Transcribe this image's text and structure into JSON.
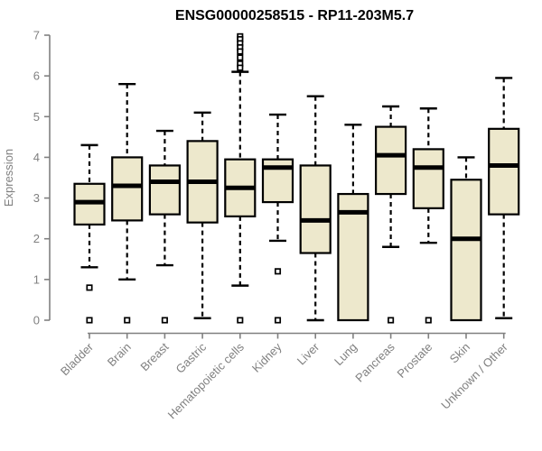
{
  "window": {
    "background": "#ffffff"
  },
  "chart_data": {
    "type": "boxplot",
    "title": "ENSG00000258515 - RP11-203M5.7",
    "xlabel": "",
    "ylabel": "Expression",
    "ylim": [
      0,
      7
    ],
    "yticks": [
      0,
      1,
      2,
      3,
      4,
      5,
      6,
      7
    ],
    "grid": false,
    "legend": "none",
    "outlier_symbol": "open-square",
    "categories": [
      "Bladder",
      "Brain",
      "Breast",
      "Gastric",
      "Hematopoietic cells",
      "Kidney",
      "Liver",
      "Lung",
      "Pancreas",
      "Prostate",
      "Skin",
      "Unknown / Other"
    ],
    "series": [
      {
        "name": "Bladder",
        "low": 1.3,
        "q1": 2.35,
        "median": 2.9,
        "q3": 3.35,
        "high": 4.3,
        "outliers": [
          0.8,
          0
        ]
      },
      {
        "name": "Brain",
        "low": 1.0,
        "q1": 2.45,
        "median": 3.3,
        "q3": 4.0,
        "high": 5.8,
        "outliers": [
          0
        ]
      },
      {
        "name": "Breast",
        "low": 1.35,
        "q1": 2.6,
        "median": 3.4,
        "q3": 3.8,
        "high": 4.65,
        "outliers": [
          0
        ]
      },
      {
        "name": "Gastric",
        "low": 0.05,
        "q1": 2.4,
        "median": 3.4,
        "q3": 4.4,
        "high": 5.1,
        "outliers": []
      },
      {
        "name": "Hematopoietic cells",
        "low": 0.85,
        "q1": 2.55,
        "median": 3.25,
        "q3": 3.95,
        "high": 6.1,
        "outliers": [
          6.97,
          6.9,
          6.8,
          6.7,
          6.6,
          6.45,
          6.3,
          6.2,
          0
        ]
      },
      {
        "name": "Kidney",
        "low": 1.95,
        "q1": 2.9,
        "median": 3.75,
        "q3": 3.95,
        "high": 5.05,
        "outliers": [
          1.2,
          0
        ]
      },
      {
        "name": "Liver",
        "low": 0.0,
        "q1": 1.65,
        "median": 2.45,
        "q3": 3.8,
        "high": 5.5,
        "outliers": []
      },
      {
        "name": "Lung",
        "low": 0.0,
        "q1": 0.0,
        "median": 2.65,
        "q3": 3.1,
        "high": 4.8,
        "outliers": []
      },
      {
        "name": "Pancreas",
        "low": 1.8,
        "q1": 3.1,
        "median": 4.05,
        "q3": 4.75,
        "high": 5.25,
        "outliers": [
          0
        ]
      },
      {
        "name": "Prostate",
        "low": 1.9,
        "q1": 2.75,
        "median": 3.75,
        "q3": 4.2,
        "high": 5.2,
        "outliers": [
          0
        ]
      },
      {
        "name": "Skin",
        "low": 0.0,
        "q1": 0.0,
        "median": 2.0,
        "q3": 3.45,
        "high": 4.0,
        "outliers": []
      },
      {
        "name": "Unknown / Other",
        "low": 0.05,
        "q1": 2.6,
        "median": 3.8,
        "q3": 4.7,
        "high": 5.95,
        "outliers": []
      }
    ],
    "colors": {
      "box_fill": "#ede8cc",
      "box_border": "#000000",
      "median": "#000000",
      "whisker": "#000000",
      "outlier": "#000000",
      "axis": "#808080",
      "tick_label": "#808080",
      "title": "#000000",
      "background": "#ffffff"
    }
  }
}
